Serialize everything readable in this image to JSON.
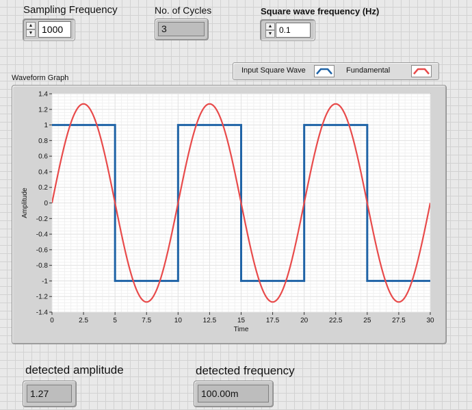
{
  "controls": {
    "sampling_frequency": {
      "label": "Sampling Frequency",
      "value": "1000"
    },
    "num_cycles": {
      "label": "No. of Cycles",
      "value": "3"
    },
    "square_wave_frequency": {
      "label": "Square wave frequency (Hz)",
      "value": "0.1"
    }
  },
  "legend": {
    "items": [
      {
        "label": "Input Square Wave",
        "color": "#1f63a6",
        "icon": "line-swatch-icon"
      },
      {
        "label": "Fundamental",
        "color": "#e84a4a",
        "icon": "line-swatch-icon"
      }
    ]
  },
  "graph": {
    "title": "Waveform Graph",
    "plot_background": "#ffffff",
    "grid_color": "#e3e3e3"
  },
  "chart_data": {
    "type": "line",
    "title": "Waveform Graph",
    "xlabel": "Time",
    "ylabel": "Amplitude",
    "xlim": [
      0,
      30
    ],
    "ylim": [
      -1.4,
      1.4
    ],
    "x_ticks": [
      0,
      2.5,
      5,
      7.5,
      10,
      12.5,
      15,
      17.5,
      20,
      22.5,
      25,
      27.5,
      30
    ],
    "x_tick_labels": [
      "0",
      "2.5",
      "5",
      "7.5",
      "10",
      "12.5",
      "15",
      "17.5",
      "20",
      "22.5",
      "25",
      "27.5",
      "30"
    ],
    "y_ticks": [
      1.4,
      1.2,
      1,
      0.8,
      0.6,
      0.4,
      0.2,
      0,
      -0.2,
      -0.4,
      -0.6,
      -0.8,
      -1,
      -1.2,
      -1.4
    ],
    "y_tick_labels": [
      "1.4",
      "1.2",
      "1",
      "0.8",
      "0.6",
      "0.4",
      "0.2",
      "0",
      "-0.2",
      "-0.4",
      "-0.6",
      "-0.8",
      "-1",
      "-1.2",
      "-1.4"
    ],
    "grid": true,
    "legend_position": "top-right",
    "series": [
      {
        "name": "Input Square Wave",
        "color": "#1f63a6",
        "x": [
          0,
          5,
          5,
          10,
          10,
          15,
          15,
          20,
          20,
          25,
          25,
          30
        ],
        "y": [
          1,
          1,
          -1,
          -1,
          1,
          1,
          -1,
          -1,
          1,
          1,
          -1,
          -1
        ]
      },
      {
        "name": "Fundamental",
        "color": "#e84a4a",
        "x": [
          0,
          1.25,
          2.5,
          3.75,
          5,
          6.25,
          7.5,
          8.75,
          10,
          11.25,
          12.5,
          13.75,
          15,
          16.25,
          17.5,
          18.75,
          20,
          21.25,
          22.5,
          23.75,
          25,
          26.25,
          27.5,
          28.75,
          30
        ],
        "y": [
          0,
          0.9,
          1.27,
          0.9,
          0,
          -0.9,
          -1.27,
          -0.9,
          0,
          0.9,
          1.27,
          0.9,
          0,
          -0.9,
          -1.27,
          -0.9,
          0,
          0.9,
          1.27,
          0.9,
          0,
          -0.9,
          -1.27,
          -0.9,
          0
        ]
      }
    ]
  },
  "indicators": {
    "detected_amplitude": {
      "label": "detected amplitude",
      "value": "1.27"
    },
    "detected_frequency": {
      "label": "detected frequency",
      "value": "100.00m"
    }
  }
}
